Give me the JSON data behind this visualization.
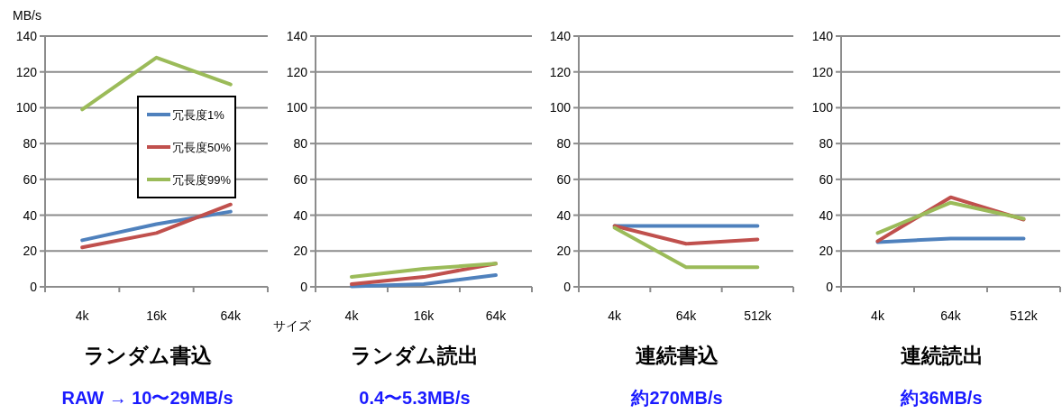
{
  "chart_data": [
    {
      "type": "line",
      "title": "ランダム書込",
      "ylabel": "MB/s",
      "xlabel": "サイズ",
      "annotations": [
        "RAW → 10〜29MB/s"
      ],
      "categories": [
        "4k",
        "16k",
        "64k"
      ],
      "ylim": [
        0,
        140
      ],
      "yticks": [
        0,
        20,
        40,
        60,
        80,
        100,
        120,
        140
      ],
      "grid": "y",
      "legend": "right",
      "series": [
        {
          "name": "冗長度1%",
          "color": "#4f81bd",
          "values": [
            26,
            35,
            42
          ]
        },
        {
          "name": "冗長度50%",
          "color": "#c0504d",
          "values": [
            22,
            30,
            46
          ]
        },
        {
          "name": "冗長度99%",
          "color": "#9bbb59",
          "values": [
            99,
            128,
            113
          ]
        }
      ]
    },
    {
      "type": "line",
      "title": "ランダム読出",
      "annotations": [
        "0.4〜5.3MB/s"
      ],
      "categories": [
        "4k",
        "16k",
        "64k"
      ],
      "ylim": [
        0,
        140
      ],
      "yticks": [
        0,
        20,
        40,
        60,
        80,
        100,
        120,
        140
      ],
      "grid": "y",
      "series": [
        {
          "color": "#4f81bd",
          "values": [
            0.3,
            1.5,
            6.5
          ]
        },
        {
          "color": "#c0504d",
          "values": [
            1.5,
            5.5,
            13
          ]
        },
        {
          "color": "#9bbb59",
          "values": [
            5.5,
            10,
            13
          ]
        }
      ]
    },
    {
      "type": "line",
      "title": "連続書込",
      "annotations": [
        "約270MB/s"
      ],
      "categories": [
        "4k",
        "64k",
        "512k"
      ],
      "ylim": [
        0,
        140
      ],
      "yticks": [
        0,
        20,
        40,
        60,
        80,
        100,
        120,
        140
      ],
      "grid": "y",
      "series": [
        {
          "color": "#4f81bd",
          "values": [
            34,
            34,
            34
          ]
        },
        {
          "color": "#c0504d",
          "values": [
            34,
            24,
            26.5
          ]
        },
        {
          "color": "#9bbb59",
          "values": [
            33,
            11,
            11
          ]
        }
      ]
    },
    {
      "type": "line",
      "title": "連続読出",
      "annotations": [
        "約36MB/s"
      ],
      "categories": [
        "4k",
        "64k",
        "512k"
      ],
      "ylim": [
        0,
        140
      ],
      "yticks": [
        0,
        20,
        40,
        60,
        80,
        100,
        120,
        140
      ],
      "grid": "y",
      "series": [
        {
          "color": "#4f81bd",
          "values": [
            25,
            27,
            27
          ]
        },
        {
          "color": "#c0504d",
          "values": [
            25.5,
            50,
            37.5
          ]
        },
        {
          "color": "#9bbb59",
          "values": [
            30,
            47,
            38
          ]
        }
      ]
    }
  ]
}
